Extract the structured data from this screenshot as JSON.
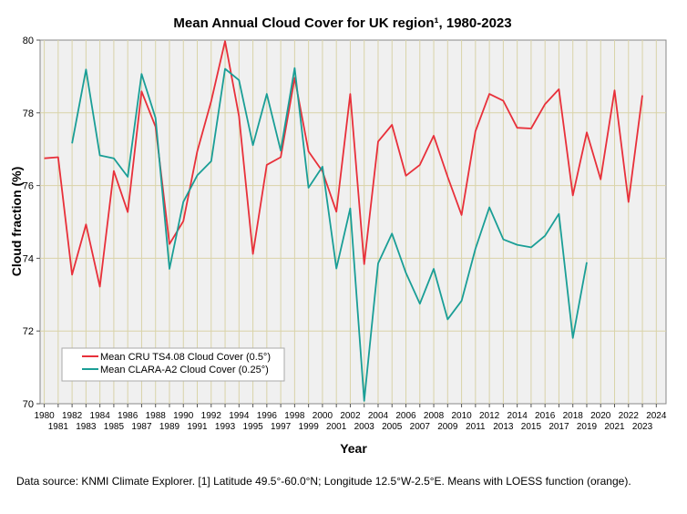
{
  "chart_data": {
    "type": "line",
    "title": "Mean Annual Cloud Cover for UK region¹, 1980-2023",
    "xlabel": "Year",
    "ylabel": "Cloud fraction (%)",
    "xlim": [
      1979.7,
      2024.7
    ],
    "ylim": [
      70,
      80
    ],
    "y_ticks": [
      70,
      72,
      74,
      76,
      78,
      80
    ],
    "x_ticks_top_row": [
      "1980",
      "1982",
      "1984",
      "1986",
      "1988",
      "1990",
      "1992",
      "1994",
      "1996",
      "1998",
      "2000",
      "2002",
      "2004",
      "2006",
      "2008",
      "2010",
      "2012",
      "2014",
      "2016",
      "2018",
      "2020",
      "2022",
      "2024"
    ],
    "x_ticks_bottom_row": [
      "1981",
      "1983",
      "1985",
      "1987",
      "1989",
      "1991",
      "1993",
      "1995",
      "1997",
      "1999",
      "2001",
      "2003",
      "2005",
      "2007",
      "2009",
      "2011",
      "2013",
      "2015",
      "2017",
      "2019",
      "2021",
      "2023"
    ],
    "grid": true,
    "legend_position": "bottom-left",
    "series": [
      {
        "name": "Mean CRU TS4.08 Cloud Cover (0.5°)",
        "color": "#e8303a",
        "x": [
          1980,
          1981,
          1982,
          1983,
          1984,
          1985,
          1986,
          1987,
          1988,
          1989,
          1990,
          1991,
          1992,
          1993,
          1994,
          1995,
          1996,
          1997,
          1998,
          1999,
          2000,
          2001,
          2002,
          2003,
          2004,
          2005,
          2006,
          2007,
          2008,
          2009,
          2010,
          2011,
          2012,
          2013,
          2014,
          2015,
          2016,
          2017,
          2018,
          2019,
          2020,
          2021,
          2022,
          2023
        ],
        "values": [
          76.75,
          76.78,
          73.55,
          74.93,
          73.22,
          76.4,
          75.27,
          78.59,
          77.62,
          74.39,
          75.02,
          76.94,
          78.32,
          79.97,
          77.91,
          74.12,
          76.57,
          76.78,
          78.96,
          76.94,
          76.39,
          75.28,
          78.52,
          73.84,
          77.21,
          77.67,
          76.27,
          76.57,
          77.37,
          76.24,
          75.19,
          77.49,
          78.52,
          78.33,
          77.59,
          77.57,
          78.24,
          78.65,
          75.73,
          77.46,
          76.17,
          78.62,
          75.55,
          78.48
        ]
      },
      {
        "name": "Mean CLARA-A2 Cloud Cover (0.25°)",
        "color": "#1a9e96",
        "x": [
          1982,
          1983,
          1984,
          1985,
          1986,
          1987,
          1988,
          1989,
          1990,
          1991,
          1992,
          1993,
          1994,
          1995,
          1996,
          1997,
          1998,
          1999,
          2000,
          2001,
          2002,
          2003,
          2004,
          2005,
          2006,
          2007,
          2008,
          2009,
          2010,
          2011,
          2012,
          2013,
          2014,
          2015,
          2016,
          2017,
          2018,
          2019
        ],
        "values": [
          77.16,
          79.19,
          76.83,
          76.75,
          76.24,
          79.07,
          77.86,
          73.71,
          75.55,
          76.28,
          76.67,
          79.21,
          78.9,
          77.11,
          78.52,
          76.96,
          79.23,
          75.94,
          76.52,
          73.72,
          75.37,
          70.08,
          73.86,
          74.68,
          73.6,
          72.75,
          73.71,
          72.32,
          72.83,
          74.26,
          75.4,
          74.52,
          74.37,
          74.3,
          74.62,
          75.22,
          71.81,
          73.89
        ]
      }
    ]
  },
  "footnote": "Data source: KNMI Climate Explorer. [1] Latitude 49.5°-60.0°N; Longitude 12.5°W-2.5°E. Means with LOESS function (orange)."
}
